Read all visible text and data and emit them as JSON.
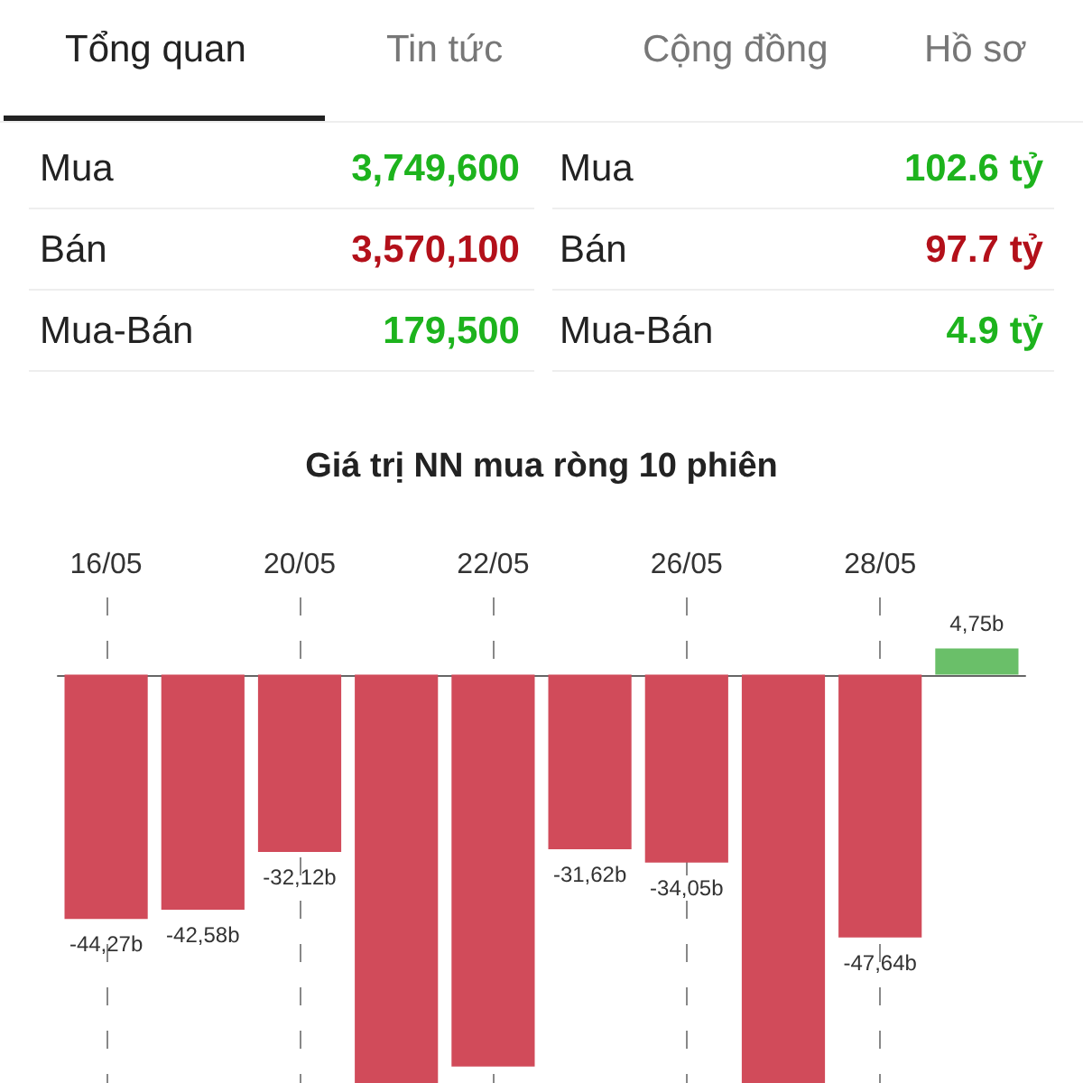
{
  "chart_data": [
    {
      "type": "other",
      "annotations": [
        "Tổng quan",
        "Tin tức",
        "Cộng đồng",
        "Hồ sơ",
        "Mua",
        "3,749,600",
        "Mua",
        "102.6 tỷ",
        "Bán",
        "3,570,100",
        "Bán",
        "97.7 tỷ",
        "Mua-Bán",
        "179,500",
        "Mua-Bán",
        "4.9 tỷ"
      ]
    },
    {
      "type": "bar",
      "title": "Giá trị NN mua ròng 10 phiên",
      "categories": [
        "16/05",
        null,
        "20/05",
        null,
        "22/05",
        null,
        "26/05",
        null,
        "28/05",
        null
      ],
      "values": [
        -44.27,
        -42.58,
        -32.12,
        -74,
        -71,
        -31.62,
        -34.05,
        -74,
        -47.64,
        4.75
      ],
      "colors": [
        "#d14b5a",
        "#d14b5a",
        "#d14b5a",
        "#d14b5a",
        "#d14b5a",
        "#d14b5a",
        "#d14b5a",
        "#d14b5a",
        "#d14b5a",
        "#6abf69"
      ],
      "value_labels": [
        "-44,27b",
        "-42,58b",
        "-32,12b",
        null,
        null,
        "-31,62b",
        "-34,05b",
        null,
        "-47,64b",
        "4,75b"
      ],
      "ylim": [
        -74,
        14
      ],
      "tick_labels": "x",
      "grid": "x"
    }
  ]
}
